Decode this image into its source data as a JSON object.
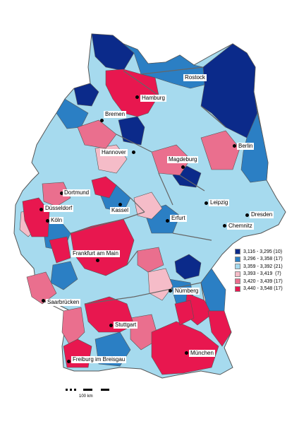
{
  "legend": {
    "items": [
      {
        "label": "3,116 - 3,295 (10)",
        "color": "#0b2a8a"
      },
      {
        "label": "3,296 - 3,358 (17)",
        "color": "#2b7fc4"
      },
      {
        "label": "3,359 - 3,392 (21)",
        "color": "#a6daee"
      },
      {
        "label": "3,393 - 3,419  (7)",
        "color": "#f5bcc8"
      },
      {
        "label": "3,420 - 3,439 (17)",
        "color": "#ea6f8e"
      },
      {
        "label": "3,440 - 3,548 (17)",
        "color": "#e8174f"
      }
    ]
  },
  "scale": {
    "label": "100 km"
  },
  "cities": [
    {
      "name": "Rostock"
    },
    {
      "name": "Hamburg"
    },
    {
      "name": "Bremen"
    },
    {
      "name": "Berlin"
    },
    {
      "name": "Hannover"
    },
    {
      "name": "Magdeburg"
    },
    {
      "name": "Dortmund"
    },
    {
      "name": "Düsseldorf"
    },
    {
      "name": "Köln"
    },
    {
      "name": "Kassel"
    },
    {
      "name": "Leipzig"
    },
    {
      "name": "Erfurt"
    },
    {
      "name": "Dresden"
    },
    {
      "name": "Chemnitz"
    },
    {
      "name": "Frankfurt am Main"
    },
    {
      "name": "Nürnberg"
    },
    {
      "name": "Saarbrücken"
    },
    {
      "name": "Stuttgart"
    },
    {
      "name": "München"
    },
    {
      "name": "Freiburg im Breisgau"
    }
  ]
}
